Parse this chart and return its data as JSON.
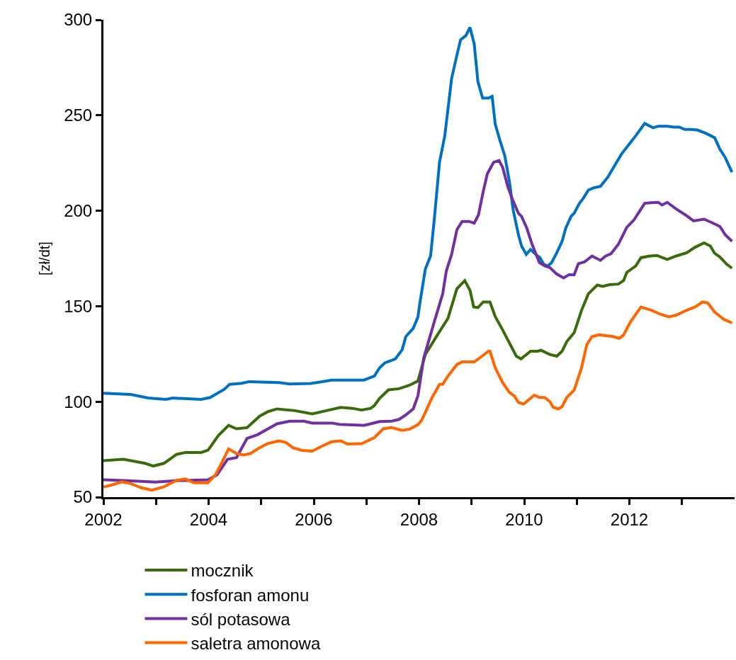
{
  "chart_data": {
    "type": "line",
    "ylabel": "[zł/dt]",
    "xlim": [
      2002,
      2014
    ],
    "ylim": [
      50,
      300
    ],
    "xticks": [
      2002,
      {
        "value": 2003,
        "label": null
      },
      2004,
      {
        "value": 2005,
        "label": null
      },
      2006,
      {
        "value": 2007,
        "label": null
      },
      2008,
      {
        "value": 2009,
        "label": null
      },
      2010,
      {
        "value": 2011,
        "label": null
      },
      2012,
      {
        "value": 2013,
        "label": null
      }
    ],
    "yticks": [
      50,
      100,
      150,
      200,
      250,
      300
    ],
    "legend": "bottom",
    "marker": "none",
    "line_style": "solid",
    "series": [
      {
        "name": "mocznik",
        "color": "#3a6b0a",
        "x": [
          2002.0,
          2002.38,
          2002.79,
          2002.95,
          2003.15,
          2003.39,
          2003.56,
          2003.86,
          2003.99,
          2004.19,
          2004.38,
          2004.53,
          2004.73,
          2004.97,
          2005.13,
          2005.3,
          2005.64,
          2005.97,
          2006.24,
          2006.51,
          2006.74,
          2006.91,
          2007.08,
          2007.15,
          2007.25,
          2007.42,
          2007.62,
          2007.82,
          2007.98,
          2008.12,
          2008.39,
          2008.55,
          2008.72,
          2008.87,
          2008.97,
          2009.04,
          2009.12,
          2009.22,
          2009.35,
          2009.45,
          2009.59,
          2009.72,
          2009.85,
          2009.94,
          2010.12,
          2010.25,
          2010.32,
          2010.49,
          2010.62,
          2010.72,
          2010.81,
          2010.95,
          2011.09,
          2011.22,
          2011.39,
          2011.49,
          2011.62,
          2011.79,
          2011.89,
          2011.95,
          2012.12,
          2012.22,
          2012.39,
          2012.52,
          2012.72,
          2012.89,
          2013.09,
          2013.25,
          2013.42,
          2013.54,
          2013.62,
          2013.72,
          2013.85,
          2013.95
        ],
        "values": [
          69.1,
          69.8,
          67.7,
          66.3,
          67.7,
          72.4,
          73.4,
          73.4,
          74.6,
          82.4,
          87.6,
          85.8,
          86.4,
          92.4,
          94.8,
          96.2,
          95.3,
          93.6,
          95.3,
          97.0,
          96.5,
          95.6,
          96.5,
          97.9,
          101.7,
          106.2,
          106.8,
          108.6,
          110.8,
          124.7,
          136.7,
          143.6,
          159.1,
          163.4,
          158.3,
          149.6,
          149.3,
          152.2,
          152.2,
          144.5,
          137.6,
          130.7,
          123.8,
          122.4,
          126.4,
          126.4,
          126.9,
          124.7,
          123.8,
          126.4,
          131.5,
          136.1,
          147.8,
          156.5,
          161.1,
          160.4,
          161.3,
          161.6,
          163.4,
          167.7,
          171.1,
          175.4,
          176.3,
          176.6,
          174.5,
          176.3,
          178.0,
          180.9,
          183.2,
          181.5,
          177.7,
          175.8,
          172.0,
          169.9
        ]
      },
      {
        "name": "fosforan amonu",
        "color": "#0070c0",
        "x": [
          2002.0,
          2002.52,
          2002.85,
          2003.19,
          2003.32,
          2003.86,
          2004.03,
          2004.3,
          2004.4,
          2004.63,
          2004.77,
          2005.34,
          2005.54,
          2005.94,
          2006.14,
          2006.34,
          2006.95,
          2007.15,
          2007.25,
          2007.35,
          2007.55,
          2007.68,
          2007.75,
          2007.89,
          2007.98,
          2008.02,
          2008.12,
          2008.22,
          2008.29,
          2008.39,
          2008.49,
          2008.62,
          2008.72,
          2008.79,
          2008.89,
          2008.97,
          2009.05,
          2009.12,
          2009.21,
          2009.32,
          2009.39,
          2009.45,
          2009.54,
          2009.63,
          2009.72,
          2009.79,
          2009.89,
          2009.95,
          2010.04,
          2010.12,
          2010.22,
          2010.3,
          2010.37,
          2010.45,
          2010.52,
          2010.62,
          2010.72,
          2010.79,
          2010.89,
          2010.95,
          2011.05,
          2011.12,
          2011.22,
          2011.32,
          2011.45,
          2011.59,
          2011.72,
          2011.85,
          2012.02,
          2012.12,
          2012.29,
          2012.45,
          2012.55,
          2012.72,
          2012.85,
          2012.95,
          2013.05,
          2013.15,
          2013.29,
          2013.45,
          2013.62,
          2013.72,
          2013.82,
          2013.95
        ],
        "values": [
          104.4,
          103.8,
          101.9,
          101.2,
          101.9,
          101.2,
          102.2,
          106.5,
          109.1,
          109.6,
          110.5,
          110.0,
          109.3,
          109.5,
          110.4,
          111.3,
          111.3,
          113.4,
          117.7,
          120.3,
          122.4,
          127.2,
          134.1,
          138.4,
          144.4,
          152.2,
          169.4,
          176.3,
          195.3,
          225.4,
          239.2,
          269.3,
          281.4,
          289.5,
          291.7,
          296.0,
          287.4,
          267.6,
          259.0,
          259.0,
          259.9,
          245.3,
          236.7,
          228.9,
          215.1,
          200.4,
          187.5,
          181.5,
          177.1,
          179.7,
          177.1,
          175.4,
          172.0,
          171.1,
          172.8,
          178.0,
          184.0,
          190.9,
          197.0,
          198.7,
          203.9,
          206.4,
          210.8,
          212.0,
          212.8,
          217.6,
          223.7,
          229.7,
          235.7,
          239.2,
          245.7,
          243.5,
          244.3,
          244.3,
          243.8,
          243.8,
          242.6,
          242.6,
          242.3,
          240.6,
          238.3,
          232.3,
          228.0,
          220.2
        ]
      },
      {
        "name": "sól potasowa",
        "color": "#7030a0",
        "x": [
          2002.0,
          2002.45,
          2002.99,
          2003.39,
          2003.99,
          2004.16,
          2004.36,
          2004.53,
          2004.73,
          2004.93,
          2005.13,
          2005.3,
          2005.54,
          2005.81,
          2005.97,
          2006.34,
          2006.48,
          2006.95,
          2007.08,
          2007.25,
          2007.48,
          2007.62,
          2007.75,
          2007.89,
          2007.98,
          2008.09,
          2008.19,
          2008.29,
          2008.45,
          2008.52,
          2008.62,
          2008.72,
          2008.82,
          2008.95,
          2009.05,
          2009.13,
          2009.22,
          2009.3,
          2009.42,
          2009.52,
          2009.59,
          2009.69,
          2009.77,
          2009.89,
          2009.95,
          2010.05,
          2010.15,
          2010.29,
          2010.39,
          2010.49,
          2010.62,
          2010.75,
          2010.85,
          2010.95,
          2011.03,
          2011.15,
          2011.29,
          2011.45,
          2011.55,
          2011.65,
          2011.79,
          2011.95,
          2012.09,
          2012.29,
          2012.42,
          2012.55,
          2012.62,
          2012.72,
          2012.89,
          2013.05,
          2013.22,
          2013.42,
          2013.55,
          2013.72,
          2013.82,
          2013.95
        ],
        "values": [
          59.1,
          58.6,
          57.9,
          58.6,
          59.1,
          61.7,
          69.8,
          70.7,
          80.7,
          82.7,
          85.8,
          88.4,
          89.8,
          89.8,
          88.8,
          88.8,
          88.1,
          87.6,
          88.4,
          89.6,
          89.8,
          90.7,
          93.1,
          96.2,
          103.1,
          122.9,
          132.3,
          141.8,
          156.4,
          168.5,
          177.1,
          190.0,
          194.4,
          194.4,
          193.5,
          197.8,
          209.9,
          219.4,
          225.4,
          226.3,
          222.8,
          212.5,
          206.4,
          198.7,
          197.0,
          190.9,
          182.4,
          172.8,
          171.1,
          170.2,
          166.8,
          164.8,
          166.5,
          166.5,
          172.3,
          173.3,
          176.3,
          174.0,
          176.3,
          177.5,
          182.4,
          191.3,
          195.3,
          203.9,
          204.2,
          204.4,
          203.0,
          204.4,
          200.9,
          198.1,
          194.7,
          195.6,
          194.0,
          191.8,
          187.5,
          184.0
        ]
      },
      {
        "name": "saletra amonowa",
        "color": "#ff6600",
        "x": [
          2002.0,
          2002.15,
          2002.35,
          2002.52,
          2002.72,
          2002.92,
          2003.15,
          2003.39,
          2003.56,
          2003.72,
          2003.99,
          2004.13,
          2004.23,
          2004.38,
          2004.53,
          2004.66,
          2004.8,
          2004.97,
          2005.13,
          2005.34,
          2005.47,
          2005.6,
          2005.77,
          2005.97,
          2006.17,
          2006.34,
          2006.51,
          2006.64,
          2006.91,
          2007.15,
          2007.32,
          2007.48,
          2007.68,
          2007.82,
          2007.98,
          2008.05,
          2008.25,
          2008.39,
          2008.45,
          2008.55,
          2008.72,
          2008.82,
          2009.05,
          2009.15,
          2009.32,
          2009.35,
          2009.45,
          2009.59,
          2009.72,
          2009.81,
          2009.89,
          2009.99,
          2010.19,
          2010.29,
          2010.39,
          2010.49,
          2010.55,
          2010.65,
          2010.72,
          2010.81,
          2010.95,
          2011.09,
          2011.19,
          2011.29,
          2011.42,
          2011.69,
          2011.81,
          2011.89,
          2012.02,
          2012.22,
          2012.42,
          2012.59,
          2012.75,
          2012.89,
          2013.09,
          2013.25,
          2013.39,
          2013.49,
          2013.62,
          2013.79,
          2013.95
        ],
        "values": [
          55.3,
          56.3,
          58.0,
          57.1,
          54.9,
          53.6,
          55.4,
          58.8,
          59.5,
          57.5,
          57.5,
          61.7,
          66.9,
          75.2,
          72.9,
          72.1,
          72.9,
          75.9,
          78.1,
          79.5,
          78.6,
          75.9,
          74.5,
          74.1,
          76.9,
          79.0,
          79.5,
          77.8,
          78.0,
          81.1,
          85.8,
          86.4,
          85.0,
          85.6,
          88.0,
          90.2,
          102.2,
          109.1,
          109.1,
          113.4,
          119.4,
          120.8,
          120.8,
          122.8,
          126.4,
          126.4,
          117.7,
          110.0,
          104.8,
          103.1,
          99.6,
          98.8,
          103.4,
          102.2,
          102.2,
          100.0,
          97.1,
          96.2,
          97.4,
          102.2,
          106.0,
          117.7,
          129.8,
          134.1,
          135.0,
          134.1,
          133.2,
          135.0,
          141.8,
          149.6,
          147.9,
          145.8,
          144.4,
          145.3,
          147.9,
          149.6,
          152.2,
          151.7,
          147.0,
          143.2,
          141.3
        ]
      }
    ]
  }
}
